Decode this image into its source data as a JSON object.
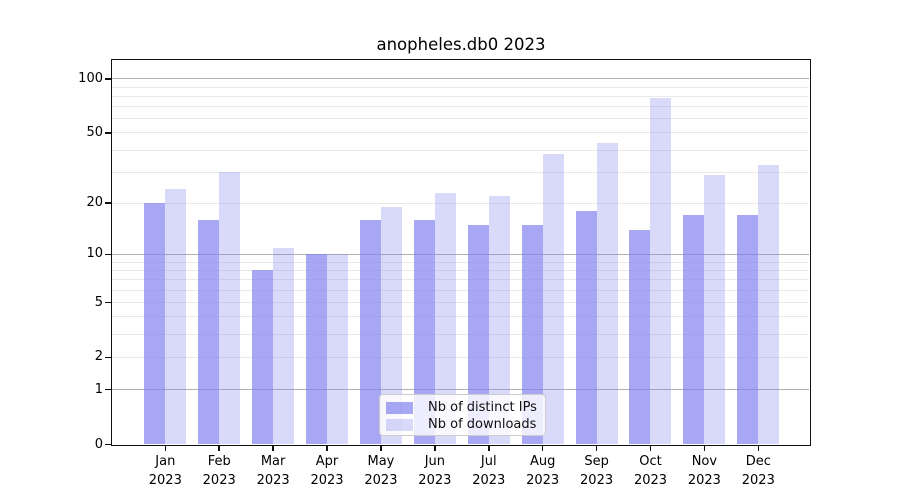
{
  "title": "anopheles.db0 2023",
  "chart_data": {
    "type": "bar",
    "title": "anopheles.db0 2023",
    "xlabel": "",
    "ylabel": "",
    "scale": "log1p",
    "ylim": [
      0,
      127
    ],
    "grid": "horizontal",
    "legend_position": "inside-bottom-center",
    "categories": [
      "Jan",
      "Feb",
      "Mar",
      "Apr",
      "May",
      "Jun",
      "Jul",
      "Aug",
      "Sep",
      "Oct",
      "Nov",
      "Dec"
    ],
    "year": "2023",
    "yticks": [
      0,
      1,
      2,
      5,
      10,
      20,
      50,
      100
    ],
    "minor_gridlines": [
      2,
      3,
      4,
      5,
      6,
      7,
      8,
      9,
      20,
      30,
      40,
      50,
      60,
      70,
      80,
      90
    ],
    "major_gridlines": [
      1,
      10,
      100
    ],
    "series": [
      {
        "name": "Nb of distinct IPs",
        "color": "rgba(130,130,240,0.7)",
        "values": [
          20,
          16,
          8,
          10,
          16,
          16,
          15,
          15,
          18,
          14,
          17,
          17
        ]
      },
      {
        "name": "Nb of downloads",
        "color": "rgba(130,130,240,0.3)",
        "values": [
          24,
          30,
          11,
          10,
          19,
          23,
          22,
          38,
          44,
          78,
          29,
          33
        ]
      }
    ],
    "colors": {
      "major_grid": "#b0b0b0",
      "minor_grid": "#e9e9e9",
      "frame": "#111111",
      "background": "#ffffff"
    }
  }
}
